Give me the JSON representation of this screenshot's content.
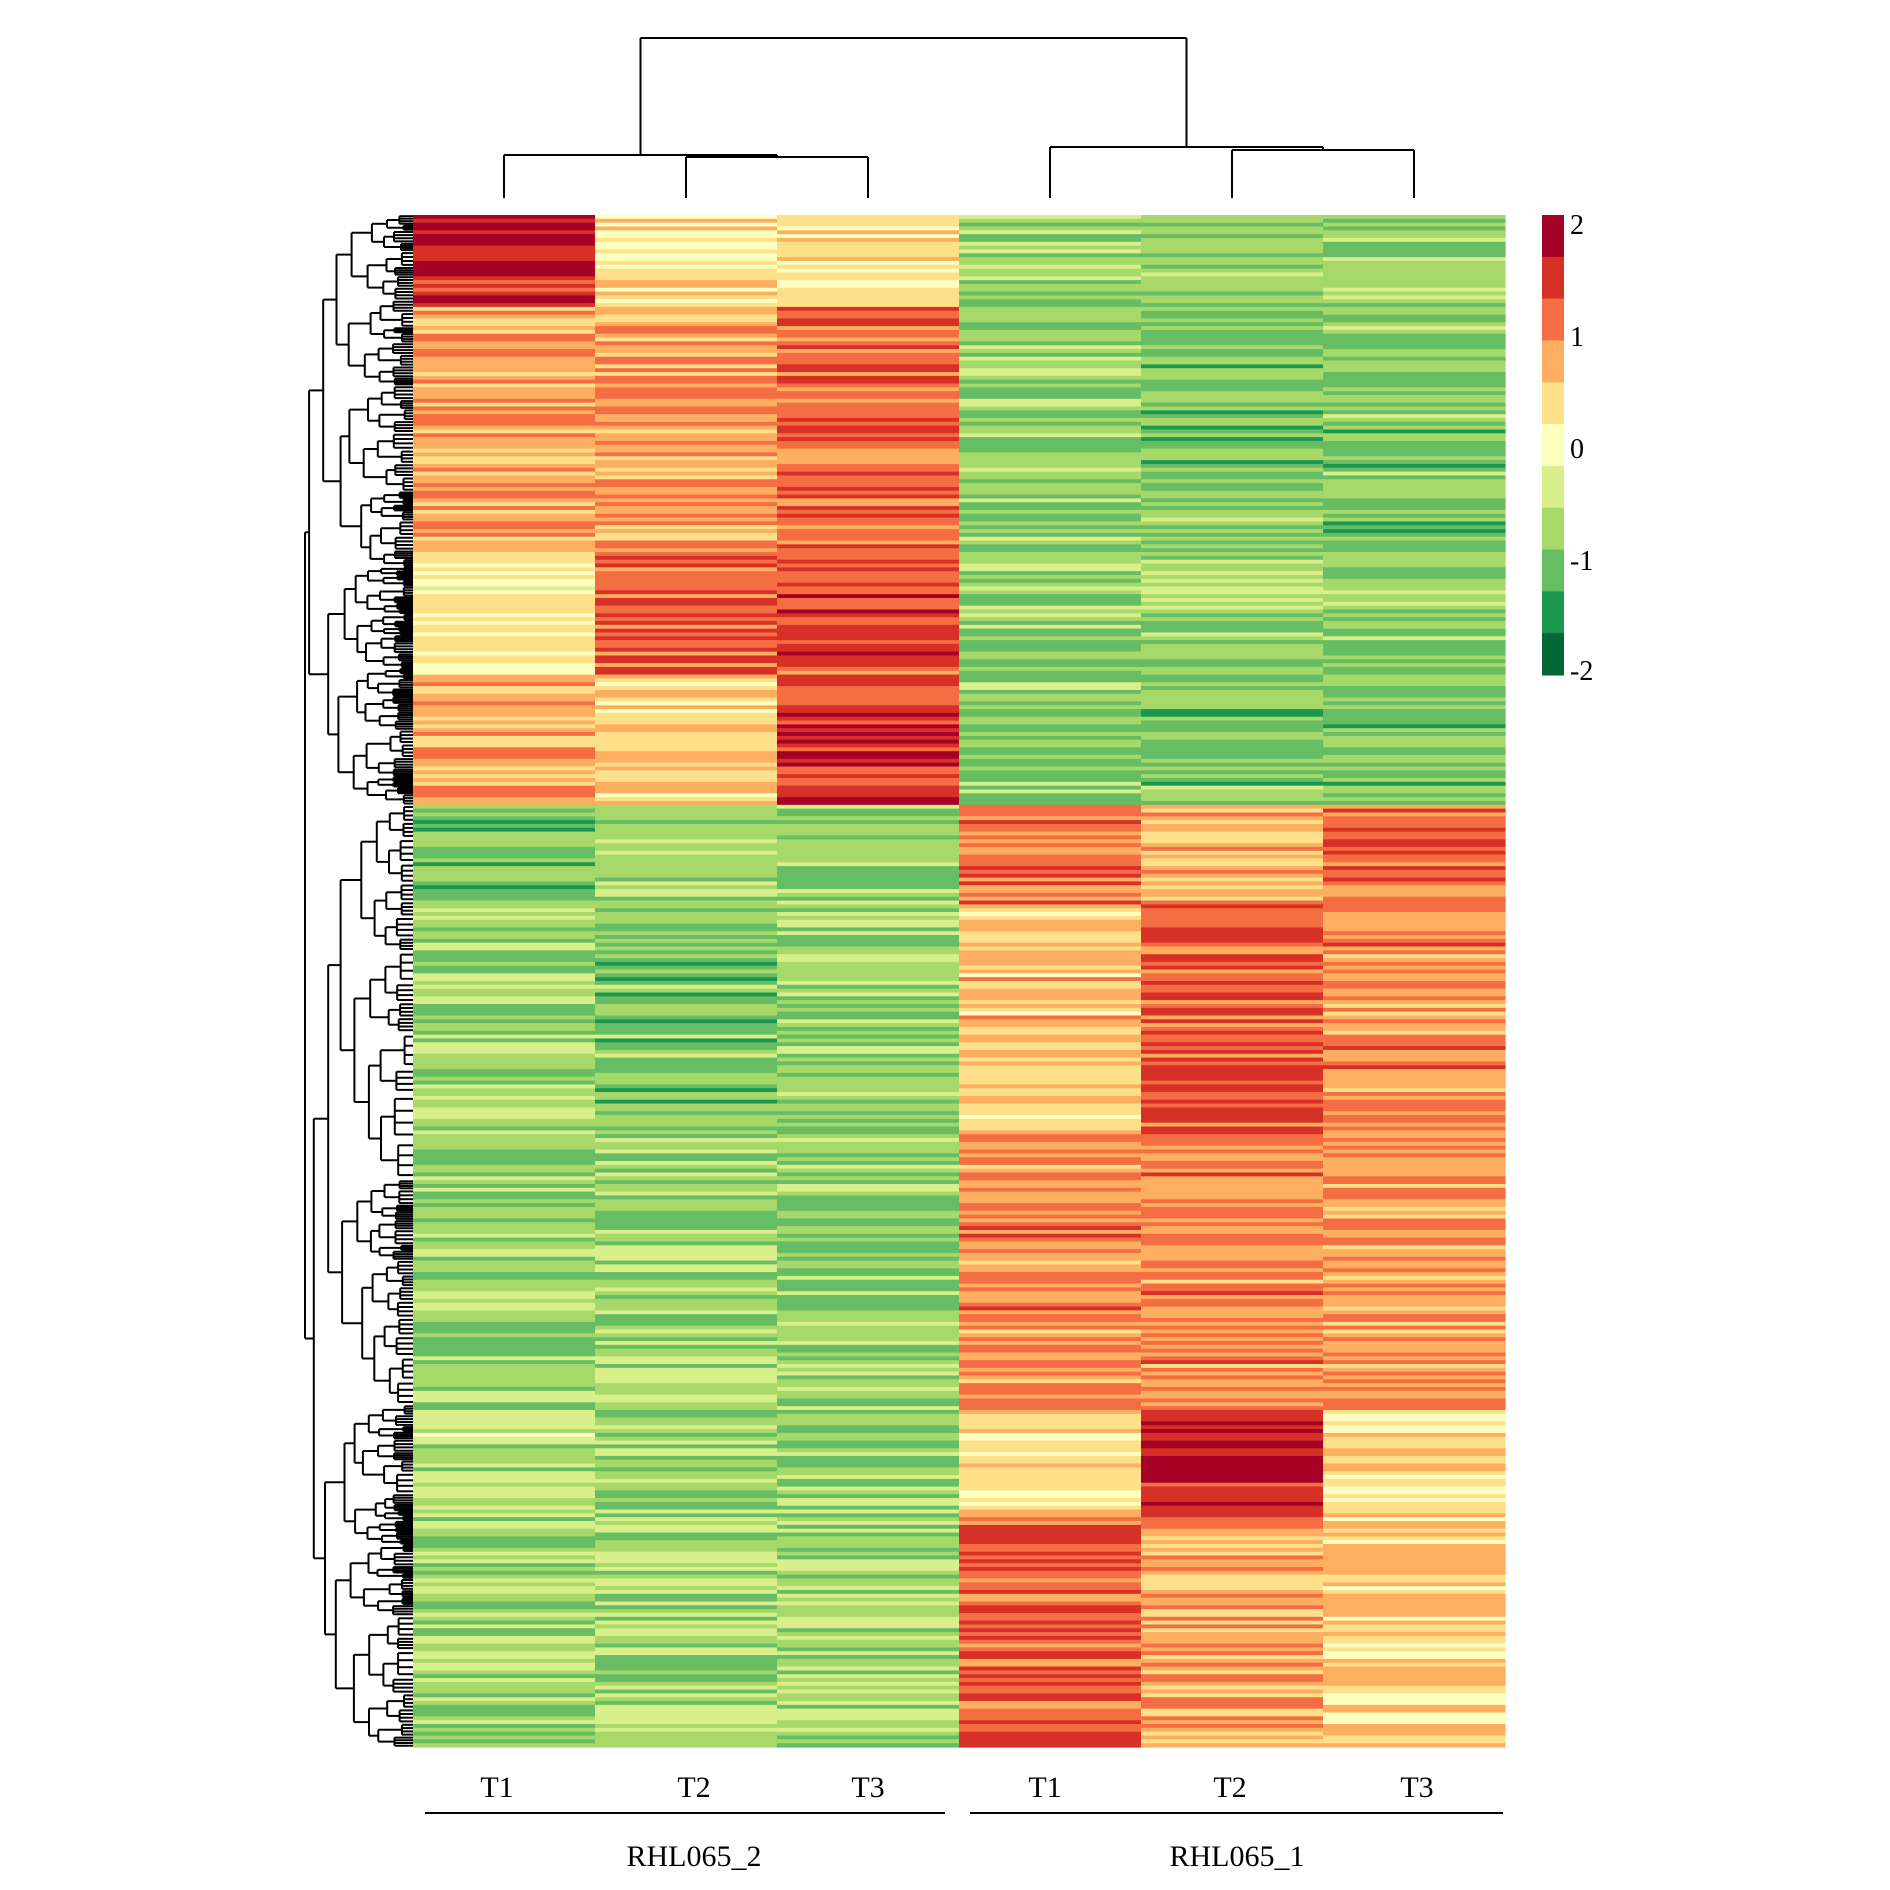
{
  "chart_data": {
    "type": "heatmap",
    "title": "",
    "xlabel": "",
    "ylabel": "",
    "columns": [
      {
        "label": "T1",
        "group": "RHL065_2"
      },
      {
        "label": "T2",
        "group": "RHL065_2"
      },
      {
        "label": "T3",
        "group": "RHL065_2"
      },
      {
        "label": "T1",
        "group": "RHL065_1"
      },
      {
        "label": "T2",
        "group": "RHL065_1"
      },
      {
        "label": "T3",
        "group": "RHL065_1"
      }
    ],
    "groups": [
      "RHL065_2",
      "RHL065_1"
    ],
    "color_scale": {
      "min": -2,
      "max": 2,
      "ticks": [
        "2",
        "1",
        "0",
        "-1",
        "-2"
      ],
      "colors": [
        "#A50026",
        "#D73027",
        "#F46D43",
        "#FDAE61",
        "#FEE08B",
        "#FFFFBF",
        "#D9EF8B",
        "#A6D96A",
        "#66BD63",
        "#1A9850",
        "#006837"
      ]
    },
    "approx_row_blocks": [
      {
        "rows_fraction": [
          0.0,
          0.06
        ],
        "values": [
          1.7,
          0.3,
          0.4,
          -0.9,
          -0.9,
          -0.9
        ]
      },
      {
        "rows_fraction": [
          0.06,
          0.22
        ],
        "values": [
          0.8,
          0.9,
          1.2,
          -0.9,
          -1.0,
          -1.0
        ]
      },
      {
        "rows_fraction": [
          0.22,
          0.3
        ],
        "values": [
          0.2,
          1.4,
          1.4,
          -0.9,
          -0.9,
          -1.0
        ]
      },
      {
        "rows_fraction": [
          0.3,
          0.385
        ],
        "values": [
          0.8,
          0.5,
          1.6,
          -0.9,
          -1.0,
          -1.0
        ]
      },
      {
        "rows_fraction": [
          0.385,
          0.45
        ],
        "values": [
          -1.1,
          -0.8,
          -0.8,
          1.1,
          0.7,
          1.2
        ]
      },
      {
        "rows_fraction": [
          0.45,
          0.6
        ],
        "values": [
          -0.8,
          -1.0,
          -0.9,
          0.6,
          1.3,
          1.0
        ]
      },
      {
        "rows_fraction": [
          0.6,
          0.78
        ],
        "values": [
          -0.9,
          -0.8,
          -0.9,
          1.0,
          1.0,
          0.9
        ]
      },
      {
        "rows_fraction": [
          0.78,
          0.85
        ],
        "values": [
          -0.6,
          -0.8,
          -0.8,
          0.4,
          1.8,
          0.4
        ]
      },
      {
        "rows_fraction": [
          0.85,
          1.0
        ],
        "values": [
          -0.8,
          -0.8,
          -0.7,
          1.3,
          0.8,
          0.5
        ]
      }
    ],
    "row_dendrogram": true,
    "column_dendrogram": true,
    "legend": "right"
  }
}
